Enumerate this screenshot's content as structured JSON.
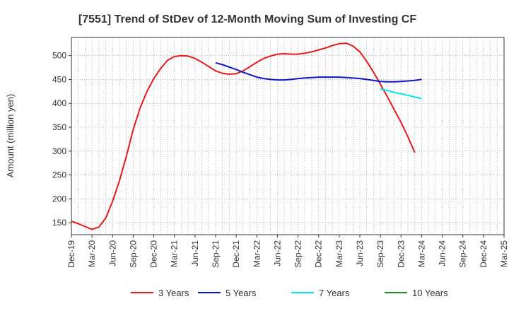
{
  "chart_data": {
    "type": "line",
    "title": "[7551]  Trend of StDev of 12-Month Moving Sum of Investing CF",
    "ylabel": "Amount (million yen)",
    "xlabel": "",
    "ylim": [
      125,
      538
    ],
    "yticks": [
      150,
      200,
      250,
      300,
      350,
      400,
      450,
      500
    ],
    "xlim": [
      "2019-12",
      "2025-03"
    ],
    "xticks": [
      "Dec-19",
      "Mar-20",
      "Jun-20",
      "Sep-20",
      "Dec-20",
      "Mar-21",
      "Jun-21",
      "Sep-21",
      "Dec-21",
      "Mar-22",
      "Jun-22",
      "Sep-22",
      "Dec-22",
      "Mar-23",
      "Jun-23",
      "Sep-23",
      "Dec-23",
      "Mar-24",
      "Jun-24",
      "Sep-24",
      "Dec-24",
      "Mar-25"
    ],
    "grid": true,
    "legend": "bottom",
    "series": [
      {
        "name": "3 Years",
        "color": "#e31a1c",
        "x": [
          "2019-12",
          "2020-01",
          "2020-02",
          "2020-03",
          "2020-04",
          "2020-05",
          "2020-06",
          "2020-07",
          "2020-08",
          "2020-09",
          "2020-10",
          "2020-11",
          "2020-12",
          "2021-01",
          "2021-02",
          "2021-03",
          "2021-04",
          "2021-05",
          "2021-06",
          "2021-07",
          "2021-08",
          "2021-09",
          "2021-10",
          "2021-11",
          "2021-12",
          "2022-01",
          "2022-02",
          "2022-03",
          "2022-04",
          "2022-05",
          "2022-06",
          "2022-07",
          "2022-08",
          "2022-09",
          "2022-10",
          "2022-11",
          "2022-12",
          "2023-01",
          "2023-02",
          "2023-03",
          "2023-04",
          "2023-05",
          "2023-06",
          "2023-07",
          "2023-08",
          "2023-09",
          "2023-10",
          "2023-11",
          "2023-12",
          "2024-01",
          "2024-02",
          "2024-03"
        ],
        "values": [
          153,
          148,
          142,
          136,
          141,
          160,
          195,
          238,
          289,
          345,
          390,
          425,
          452,
          473,
          490,
          498,
          500,
          499,
          494,
          486,
          477,
          468,
          463,
          461,
          462,
          468,
          477,
          486,
          494,
          499,
          503,
          504,
          503,
          503,
          505,
          508,
          512,
          516,
          521,
          525,
          526,
          520,
          508,
          488,
          465,
          440,
          414,
          387,
          360,
          330,
          297,
          null
        ]
      },
      {
        "name": "5 Years",
        "color": "#0a18c8",
        "x": [
          "2021-09",
          "2021-10",
          "2021-11",
          "2021-12",
          "2022-01",
          "2022-02",
          "2022-03",
          "2022-04",
          "2022-05",
          "2022-06",
          "2022-07",
          "2022-08",
          "2022-09",
          "2022-10",
          "2022-11",
          "2022-12",
          "2023-01",
          "2023-02",
          "2023-03",
          "2023-04",
          "2023-05",
          "2023-06",
          "2023-07",
          "2023-08",
          "2023-09",
          "2023-10",
          "2023-11",
          "2023-12",
          "2024-01",
          "2024-02",
          "2024-03"
        ],
        "values": [
          485,
          481,
          476,
          471,
          465,
          460,
          455,
          452,
          450,
          449,
          449,
          450,
          452,
          453,
          454,
          455,
          455,
          455,
          455,
          454,
          453,
          452,
          450,
          448,
          446,
          445,
          445,
          446,
          447,
          448,
          450
        ]
      },
      {
        "name": "7 Years",
        "color": "#00e5ee",
        "x": [
          "2023-09",
          "2023-10",
          "2023-11",
          "2023-12",
          "2024-01",
          "2024-02",
          "2024-03"
        ],
        "values": [
          430,
          427,
          423,
          420,
          417,
          413,
          410
        ]
      },
      {
        "name": "10 Years",
        "color": "#228b22",
        "x": [],
        "values": []
      }
    ]
  }
}
